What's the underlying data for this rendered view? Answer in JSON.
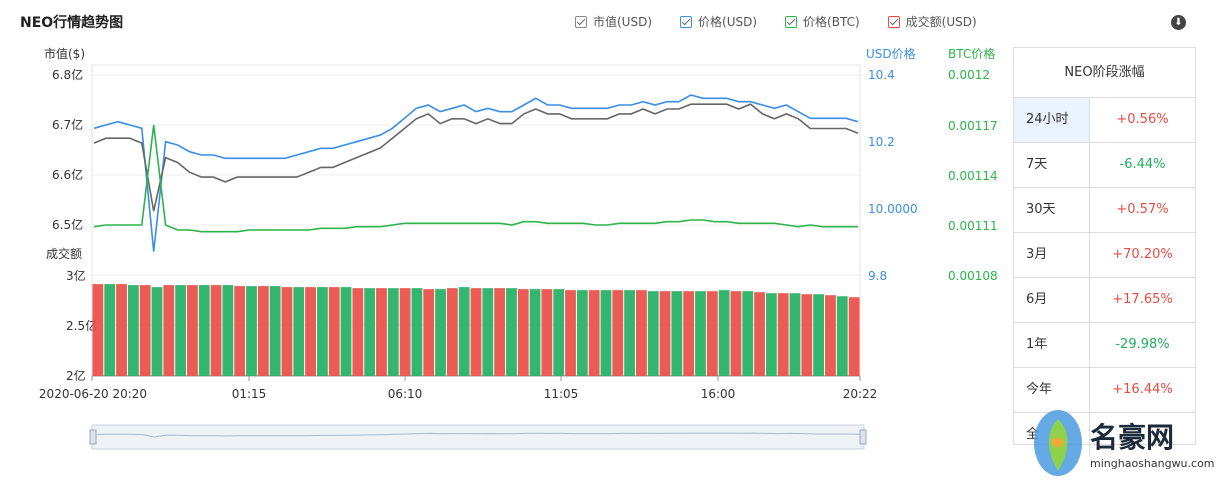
{
  "header": {
    "title": "NEO行情趋势图",
    "legend": [
      {
        "label": "市值(USD)",
        "color": "#666666"
      },
      {
        "label": "价格(USD)",
        "color": "#3a8ee6"
      },
      {
        "label": "价格(BTC)",
        "color": "#2cb44a"
      },
      {
        "label": "成交额(USD)",
        "color": "#e84a43"
      }
    ],
    "download_icon": "download-icon"
  },
  "chart_data": {
    "type": "line",
    "left_axis": {
      "label": "市值($)",
      "ticks": [
        "6.8亿",
        "6.7亿",
        "6.6亿",
        "6.5亿"
      ],
      "range": [
        6.44,
        6.8
      ]
    },
    "right_axis_usd": {
      "label": "USD价格",
      "ticks": [
        "10.4",
        "10.2",
        "10.0000",
        "9.8"
      ],
      "range": [
        9.8,
        10.4
      ]
    },
    "right_axis_btc": {
      "label": "BTC价格",
      "ticks": [
        "0.0012",
        "0.00117",
        "0.00114",
        "0.00111",
        "0.00108"
      ],
      "range": [
        0.00108,
        0.0012
      ]
    },
    "volume_axis": {
      "label": "成交额",
      "ticks": [
        "3亿",
        "2.5亿",
        "2亿"
      ],
      "range": [
        2,
        3
      ]
    },
    "x_ticks": [
      "2020-06-20 20:20",
      "01:15",
      "06:10",
      "11:05",
      "16:00",
      "20:22"
    ],
    "series": [
      {
        "name": "市值(USD)",
        "color": "#666666",
        "axis": "left",
        "values": [
          6.66,
          6.67,
          6.67,
          6.67,
          6.66,
          6.52,
          6.63,
          6.62,
          6.6,
          6.59,
          6.59,
          6.58,
          6.59,
          6.59,
          6.59,
          6.59,
          6.59,
          6.59,
          6.6,
          6.61,
          6.61,
          6.62,
          6.63,
          6.64,
          6.65,
          6.67,
          6.69,
          6.71,
          6.72,
          6.7,
          6.71,
          6.71,
          6.7,
          6.71,
          6.7,
          6.7,
          6.72,
          6.73,
          6.72,
          6.72,
          6.71,
          6.71,
          6.71,
          6.71,
          6.72,
          6.72,
          6.73,
          6.72,
          6.73,
          6.73,
          6.74,
          6.74,
          6.74,
          6.74,
          6.73,
          6.74,
          6.72,
          6.71,
          6.72,
          6.71,
          6.69,
          6.69,
          6.69,
          6.69,
          6.68
        ]
      },
      {
        "name": "价格(USD)",
        "color": "#3a8ee6",
        "axis": "usd",
        "values": [
          10.24,
          10.25,
          10.26,
          10.25,
          10.24,
          9.87,
          10.2,
          10.19,
          10.17,
          10.16,
          10.16,
          10.15,
          10.15,
          10.15,
          10.15,
          10.15,
          10.15,
          10.16,
          10.17,
          10.18,
          10.18,
          10.19,
          10.2,
          10.21,
          10.22,
          10.24,
          10.27,
          10.3,
          10.31,
          10.29,
          10.3,
          10.31,
          10.29,
          10.3,
          10.29,
          10.29,
          10.31,
          10.33,
          10.31,
          10.31,
          10.3,
          10.3,
          10.3,
          10.3,
          10.31,
          10.31,
          10.32,
          10.31,
          10.32,
          10.32,
          10.34,
          10.33,
          10.33,
          10.33,
          10.32,
          10.32,
          10.31,
          10.3,
          10.31,
          10.29,
          10.27,
          10.27,
          10.27,
          10.27,
          10.26
        ]
      },
      {
        "name": "价格(BTC)",
        "color": "#2cb44a",
        "axis": "btc",
        "values": [
          0.001109,
          0.00111,
          0.00111,
          0.00111,
          0.00111,
          0.00117,
          0.00111,
          0.001107,
          0.001107,
          0.001106,
          0.001106,
          0.001106,
          0.001106,
          0.001107,
          0.001107,
          0.001107,
          0.001107,
          0.001107,
          0.001107,
          0.001108,
          0.001108,
          0.001108,
          0.001109,
          0.001109,
          0.001109,
          0.00111,
          0.001111,
          0.001111,
          0.001111,
          0.001111,
          0.001111,
          0.001111,
          0.001111,
          0.001111,
          0.001111,
          0.00111,
          0.001112,
          0.001112,
          0.001111,
          0.001111,
          0.001111,
          0.001111,
          0.00111,
          0.00111,
          0.001111,
          0.001111,
          0.001111,
          0.001111,
          0.001112,
          0.001112,
          0.001113,
          0.001113,
          0.001112,
          0.001112,
          0.001111,
          0.001111,
          0.001111,
          0.001111,
          0.00111,
          0.001109,
          0.00111,
          0.001109,
          0.001109,
          0.001109,
          0.001109
        ]
      },
      {
        "name": "成交额(USD)",
        "color": "#e84a43",
        "axis": "volume",
        "values": [
          2.91,
          2.91,
          2.91,
          2.9,
          2.9,
          2.88,
          2.9,
          2.9,
          2.9,
          2.9,
          2.9,
          2.9,
          2.89,
          2.89,
          2.89,
          2.89,
          2.88,
          2.88,
          2.88,
          2.88,
          2.88,
          2.88,
          2.87,
          2.87,
          2.87,
          2.87,
          2.87,
          2.87,
          2.86,
          2.86,
          2.87,
          2.88,
          2.87,
          2.87,
          2.87,
          2.87,
          2.86,
          2.86,
          2.86,
          2.86,
          2.85,
          2.85,
          2.85,
          2.85,
          2.85,
          2.85,
          2.85,
          2.84,
          2.84,
          2.84,
          2.84,
          2.84,
          2.84,
          2.85,
          2.84,
          2.84,
          2.83,
          2.82,
          2.82,
          2.82,
          2.81,
          2.81,
          2.8,
          2.79,
          2.78
        ]
      }
    ],
    "grid": true
  },
  "changes": {
    "title": "NEO阶段涨幅",
    "rows": [
      {
        "period": "24小时",
        "value": "+0.56%",
        "dir": "up"
      },
      {
        "period": "7天",
        "value": "-6.44%",
        "dir": "down"
      },
      {
        "period": "30天",
        "value": "+0.57%",
        "dir": "up"
      },
      {
        "period": "3月",
        "value": "+70.20%",
        "dir": "up"
      },
      {
        "period": "6月",
        "value": "+17.65%",
        "dir": "up"
      },
      {
        "period": "1年",
        "value": "-29.98%",
        "dir": "down"
      },
      {
        "period": "今年",
        "value": "+16.44%",
        "dir": "up"
      }
    ],
    "partial_row": "全"
  },
  "watermark": {
    "brand": "名豪网",
    "url": "minghaoshangwu.com"
  }
}
